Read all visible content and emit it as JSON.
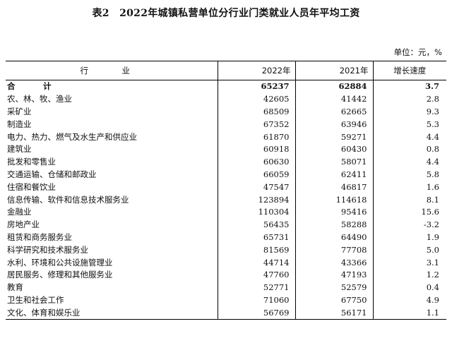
{
  "title": "表2　2022年城镇私营单位分行业门类就业人员年平均工资",
  "unit_note": "单位：元，%",
  "headers": {
    "industry": "行　业",
    "y2022": "2022年",
    "y2021": "2021年",
    "growth": "增长速度"
  },
  "rows": [
    {
      "name": "合　计",
      "y2022": "65237",
      "y2021": "62884",
      "growth": "3.7"
    },
    {
      "name": "农、林、牧、渔业",
      "y2022": "42605",
      "y2021": "41442",
      "growth": "2.8"
    },
    {
      "name": "采矿业",
      "y2022": "68509",
      "y2021": "62665",
      "growth": "9.3"
    },
    {
      "name": "制造业",
      "y2022": "67352",
      "y2021": "63946",
      "growth": "5.3"
    },
    {
      "name": "电力、热力、燃气及水生产和供应业",
      "y2022": "61870",
      "y2021": "59271",
      "growth": "4.4"
    },
    {
      "name": "建筑业",
      "y2022": "60918",
      "y2021": "60430",
      "growth": "0.8"
    },
    {
      "name": "批发和零售业",
      "y2022": "60630",
      "y2021": "58071",
      "growth": "4.4"
    },
    {
      "name": "交通运输、仓储和邮政业",
      "y2022": "66059",
      "y2021": "62411",
      "growth": "5.8"
    },
    {
      "name": "住宿和餐饮业",
      "y2022": "47547",
      "y2021": "46817",
      "growth": "1.6"
    },
    {
      "name": "信息传输、软件和信息技术服务业",
      "y2022": "123894",
      "y2021": "114618",
      "growth": "8.1"
    },
    {
      "name": "金融业",
      "y2022": "110304",
      "y2021": "95416",
      "growth": "15.6"
    },
    {
      "name": "房地产业",
      "y2022": "56435",
      "y2021": "58288",
      "growth": "-3.2"
    },
    {
      "name": "租赁和商务服务业",
      "y2022": "65731",
      "y2021": "64490",
      "growth": "1.9"
    },
    {
      "name": "科学研究和技术服务业",
      "y2022": "81569",
      "y2021": "77708",
      "growth": "5.0"
    },
    {
      "name": "水利、环境和公共设施管理业",
      "y2022": "44714",
      "y2021": "43366",
      "growth": "3.1"
    },
    {
      "name": "居民服务、修理和其他服务业",
      "y2022": "47760",
      "y2021": "47193",
      "growth": "1.2"
    },
    {
      "name": "教育",
      "y2022": "52771",
      "y2021": "52579",
      "growth": "0.4"
    },
    {
      "name": "卫生和社会工作",
      "y2022": "71060",
      "y2021": "67750",
      "growth": "4.9"
    },
    {
      "name": "文化、体育和娱乐业",
      "y2022": "56769",
      "y2021": "56171",
      "growth": "1.1"
    }
  ]
}
